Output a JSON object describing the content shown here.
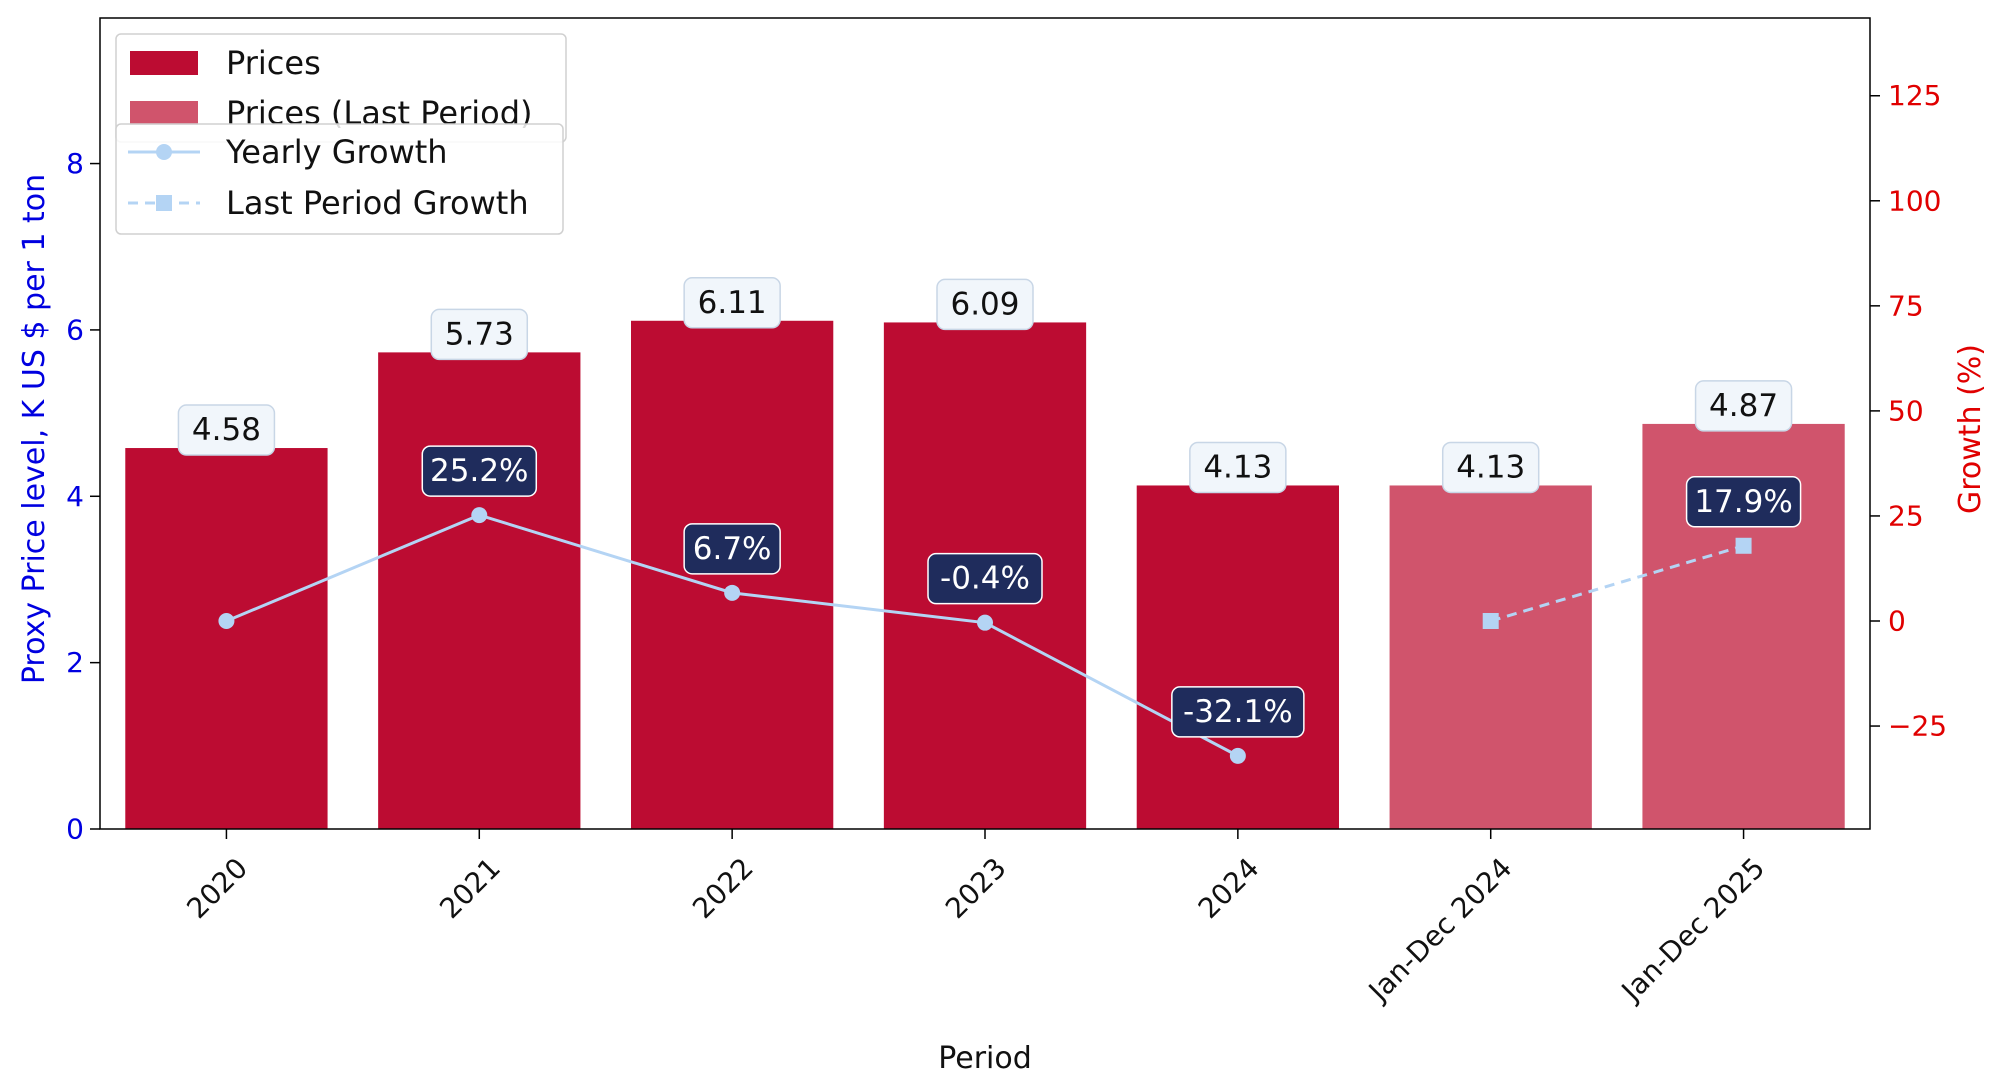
{
  "chart_data": {
    "type": "bar",
    "categories": [
      "2020",
      "2021",
      "2022",
      "2023",
      "2024",
      "Jan-Dec 2024",
      "Jan-Dec 2025"
    ],
    "series": [
      {
        "name": "Prices",
        "values": [
          4.58,
          5.73,
          6.11,
          6.09,
          4.13,
          null,
          null
        ],
        "labels": [
          "4.58",
          "5.73",
          "6.11",
          "6.09",
          "4.13",
          null,
          null
        ]
      },
      {
        "name": "Prices (Last Period)",
        "values": [
          null,
          null,
          null,
          null,
          null,
          4.13,
          4.87
        ],
        "labels": [
          null,
          null,
          null,
          null,
          null,
          "4.13",
          "4.87"
        ]
      },
      {
        "name": "Yearly Growth",
        "axis": "right",
        "values": [
          0,
          25.2,
          6.7,
          -0.4,
          -32.1,
          null,
          null
        ],
        "labels": [
          null,
          "25.2%",
          "6.7%",
          "-0.4%",
          "-32.1%",
          null,
          null
        ]
      },
      {
        "name": "Last Period Growth",
        "axis": "right",
        "values": [
          null,
          null,
          null,
          null,
          null,
          0,
          17.9
        ],
        "labels": [
          null,
          null,
          null,
          null,
          null,
          null,
          "17.9%"
        ]
      }
    ],
    "xlabel": "Period",
    "ylabel": "Proxy Price level, K US $ per 1 ton",
    "y2label": "Growth (%)",
    "ylim": [
      0,
      9.75
    ],
    "y2lim": [
      -49.5,
      143.5
    ],
    "yticks": [
      "0",
      "2",
      "4",
      "6",
      "8"
    ],
    "y2ticks": [
      "−25",
      "0",
      "25",
      "50",
      "75",
      "100",
      "125"
    ],
    "legend_position": "top-left",
    "grid": false,
    "colors": {
      "prices": "#bc0c32",
      "prices_last": "#d0546c",
      "growth_line": "#b4d4f4",
      "growth_label_bg": "#1f2c5c",
      "price_label_bg": "#f1f6fb",
      "left_axis": "#0000e0",
      "right_axis": "#e00000"
    }
  }
}
